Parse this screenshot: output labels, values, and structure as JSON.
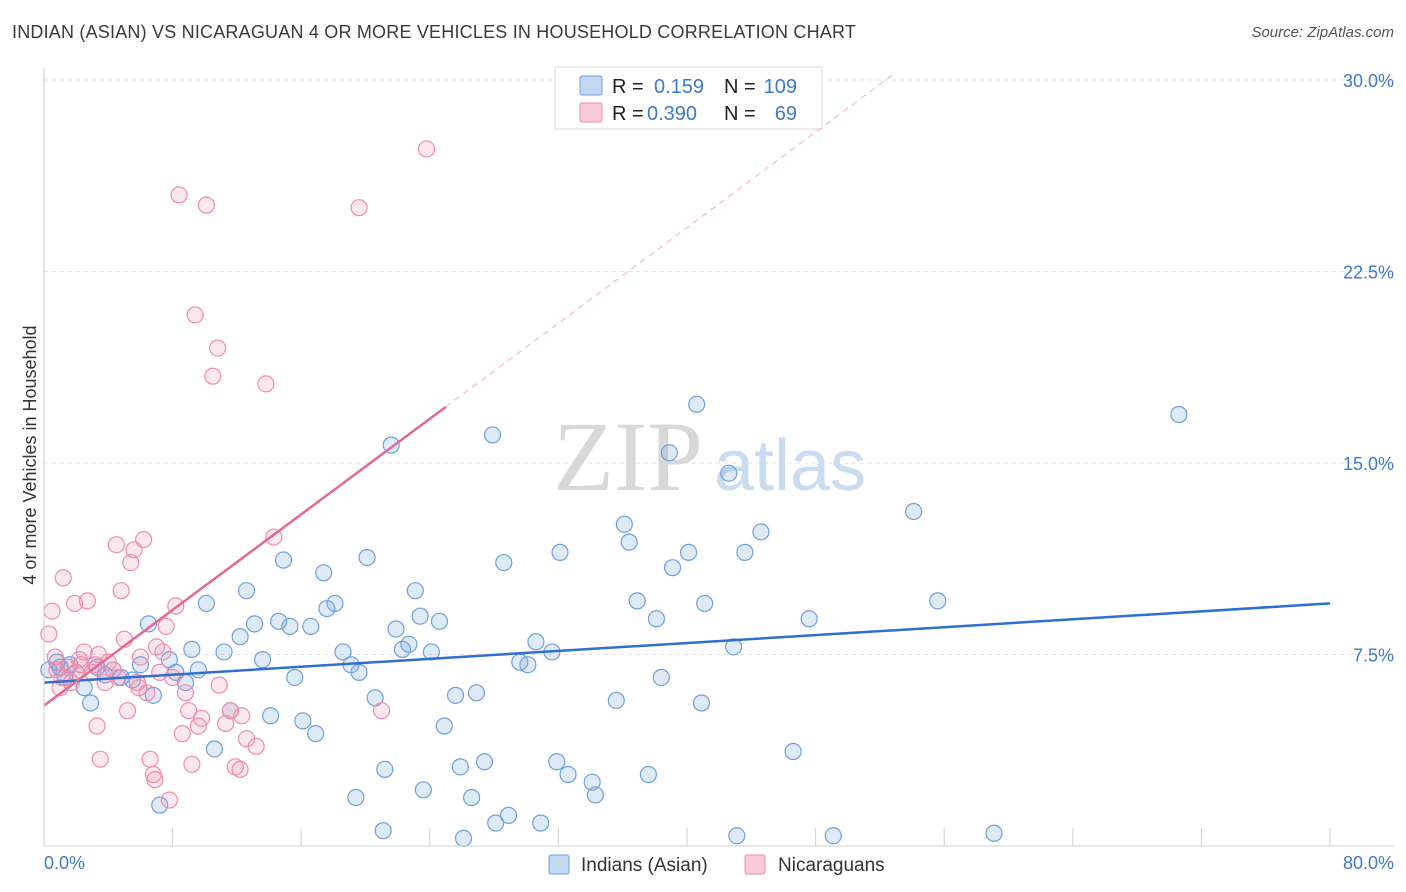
{
  "header": {
    "title": "INDIAN (ASIAN) VS NICARAGUAN 4 OR MORE VEHICLES IN HOUSEHOLD CORRELATION CHART",
    "source": "Source: ZipAtlas.com"
  },
  "watermark": {
    "zip": "ZIP",
    "atlas": "atlas"
  },
  "legend": {
    "r_label": "R =",
    "n_label": "N =",
    "rows": [
      {
        "r": "0.159",
        "n": "109",
        "color": "#6fa0dc"
      },
      {
        "r": "0.390",
        "n": "69",
        "color": "#f08cab"
      }
    ]
  },
  "bottom_legend": [
    "Indians (Asian)",
    "Nicaraguans"
  ],
  "chart_data": {
    "type": "scatter",
    "ylabel": "4 or more Vehicles in Household",
    "xlim": [
      0,
      80
    ],
    "ylim": [
      0,
      30
    ],
    "x_tick_labels": [
      "0.0%",
      "80.0%"
    ],
    "y_ticks": [
      7.5,
      15.0,
      22.5,
      30.0
    ],
    "y_tick_labels": [
      "7.5%",
      "15.0%",
      "22.5%",
      "30.0%"
    ],
    "grid": true,
    "colors": {
      "blue": "#6fa0dc",
      "blue_line": "#2f6fcf",
      "pink": "#f08cab",
      "pink_line": "#e06a92"
    },
    "series": [
      {
        "name": "Indians (Asian)",
        "trend": {
          "x0": 0,
          "y0": 6.4,
          "x1": 80,
          "y1": 9.5
        },
        "points": [
          [
            0.3,
            6.9
          ],
          [
            0.8,
            7.2
          ],
          [
            1.0,
            7.0
          ],
          [
            1.3,
            6.6
          ],
          [
            1.6,
            7.1
          ],
          [
            2.0,
            6.8
          ],
          [
            2.5,
            6.2
          ],
          [
            2.9,
            5.6
          ],
          [
            3.3,
            7.0
          ],
          [
            3.8,
            6.7
          ],
          [
            4.3,
            6.9
          ],
          [
            4.8,
            6.6
          ],
          [
            5.5,
            6.5
          ],
          [
            6.0,
            7.1
          ],
          [
            6.5,
            8.7
          ],
          [
            6.8,
            5.9
          ],
          [
            7.2,
            1.6
          ],
          [
            7.8,
            7.3
          ],
          [
            8.2,
            6.8
          ],
          [
            8.8,
            6.4
          ],
          [
            9.2,
            7.7
          ],
          [
            9.6,
            6.9
          ],
          [
            10.1,
            9.5
          ],
          [
            10.6,
            3.8
          ],
          [
            11.2,
            7.6
          ],
          [
            11.6,
            5.3
          ],
          [
            12.2,
            8.2
          ],
          [
            12.6,
            10.0
          ],
          [
            13.1,
            8.7
          ],
          [
            13.6,
            7.3
          ],
          [
            14.1,
            5.1
          ],
          [
            14.6,
            8.8
          ],
          [
            14.9,
            11.2
          ],
          [
            15.3,
            8.6
          ],
          [
            15.6,
            6.6
          ],
          [
            16.1,
            4.9
          ],
          [
            16.6,
            8.6
          ],
          [
            16.9,
            4.4
          ],
          [
            17.4,
            10.7
          ],
          [
            17.6,
            9.3
          ],
          [
            18.1,
            9.5
          ],
          [
            18.6,
            7.6
          ],
          [
            19.1,
            7.1
          ],
          [
            19.4,
            1.9
          ],
          [
            19.6,
            6.8
          ],
          [
            20.1,
            11.3
          ],
          [
            20.6,
            5.8
          ],
          [
            21.1,
            0.6
          ],
          [
            21.2,
            3.0
          ],
          [
            21.6,
            15.7
          ],
          [
            21.9,
            8.5
          ],
          [
            22.3,
            7.7
          ],
          [
            22.7,
            7.9
          ],
          [
            23.1,
            10.0
          ],
          [
            23.4,
            9.0
          ],
          [
            23.6,
            2.2
          ],
          [
            24.1,
            7.6
          ],
          [
            24.6,
            8.8
          ],
          [
            24.9,
            4.7
          ],
          [
            25.6,
            5.9
          ],
          [
            25.9,
            3.1
          ],
          [
            26.1,
            0.3
          ],
          [
            26.6,
            1.9
          ],
          [
            26.9,
            6.0
          ],
          [
            27.4,
            3.3
          ],
          [
            27.9,
            16.1
          ],
          [
            28.1,
            0.9
          ],
          [
            28.6,
            11.1
          ],
          [
            28.9,
            1.2
          ],
          [
            29.6,
            7.2
          ],
          [
            30.1,
            7.1
          ],
          [
            30.6,
            8.0
          ],
          [
            30.9,
            0.9
          ],
          [
            31.6,
            7.6
          ],
          [
            31.9,
            3.3
          ],
          [
            32.1,
            11.5
          ],
          [
            32.6,
            2.8
          ],
          [
            34.1,
            2.5
          ],
          [
            34.3,
            2.0
          ],
          [
            35.6,
            5.7
          ],
          [
            36.1,
            12.6
          ],
          [
            36.4,
            11.9
          ],
          [
            36.9,
            9.6
          ],
          [
            37.6,
            2.8
          ],
          [
            38.1,
            8.9
          ],
          [
            38.4,
            6.6
          ],
          [
            38.9,
            15.4
          ],
          [
            39.1,
            10.9
          ],
          [
            40.1,
            11.5
          ],
          [
            40.6,
            17.3
          ],
          [
            40.9,
            5.6
          ],
          [
            41.1,
            9.5
          ],
          [
            42.6,
            14.6
          ],
          [
            42.9,
            7.8
          ],
          [
            43.1,
            0.4
          ],
          [
            43.6,
            11.5
          ],
          [
            44.6,
            12.3
          ],
          [
            46.6,
            3.7
          ],
          [
            47.6,
            8.9
          ],
          [
            49.1,
            0.4
          ],
          [
            54.1,
            13.1
          ],
          [
            55.6,
            9.6
          ],
          [
            59.1,
            0.5
          ],
          [
            70.6,
            16.9
          ]
        ]
      },
      {
        "name": "Nicaraguans",
        "trend": {
          "x0": 0,
          "y0": 5.5,
          "x1": 25,
          "y1": 17.2,
          "dash_to_x": 53,
          "dash_to_y": 30.3
        },
        "points": [
          [
            0.3,
            8.3
          ],
          [
            0.5,
            9.2
          ],
          [
            0.8,
            6.9
          ],
          [
            1.0,
            6.2
          ],
          [
            1.2,
            10.5
          ],
          [
            1.5,
            7.0
          ],
          [
            1.7,
            6.4
          ],
          [
            1.9,
            9.5
          ],
          [
            2.2,
            7.3
          ],
          [
            2.5,
            7.6
          ],
          [
            2.7,
            9.6
          ],
          [
            3.0,
            6.8
          ],
          [
            3.2,
            7.1
          ],
          [
            3.3,
            4.7
          ],
          [
            3.5,
            3.4
          ],
          [
            3.8,
            6.4
          ],
          [
            4.0,
            7.2
          ],
          [
            4.3,
            6.9
          ],
          [
            4.5,
            11.8
          ],
          [
            4.8,
            10.0
          ],
          [
            5.0,
            8.1
          ],
          [
            5.2,
            5.3
          ],
          [
            5.4,
            11.1
          ],
          [
            5.6,
            11.6
          ],
          [
            5.8,
            6.4
          ],
          [
            6.0,
            7.4
          ],
          [
            6.2,
            12.0
          ],
          [
            6.4,
            6.0
          ],
          [
            6.6,
            3.4
          ],
          [
            6.8,
            2.8
          ],
          [
            7.0,
            7.8
          ],
          [
            7.2,
            6.8
          ],
          [
            7.4,
            7.6
          ],
          [
            7.6,
            8.6
          ],
          [
            7.8,
            1.8
          ],
          [
            8.0,
            6.6
          ],
          [
            8.2,
            9.4
          ],
          [
            8.4,
            25.5
          ],
          [
            8.6,
            4.4
          ],
          [
            8.8,
            6.0
          ],
          [
            9.0,
            5.3
          ],
          [
            9.2,
            3.2
          ],
          [
            9.4,
            20.8
          ],
          [
            9.8,
            5.0
          ],
          [
            10.1,
            25.1
          ],
          [
            10.5,
            18.4
          ],
          [
            10.8,
            19.5
          ],
          [
            11.3,
            4.8
          ],
          [
            11.6,
            5.3
          ],
          [
            11.9,
            3.1
          ],
          [
            12.2,
            3.0
          ],
          [
            12.6,
            4.2
          ],
          [
            13.2,
            3.9
          ],
          [
            13.8,
            18.1
          ],
          [
            14.3,
            12.1
          ],
          [
            19.6,
            25.0
          ],
          [
            23.8,
            27.3
          ],
          [
            21.0,
            5.3
          ],
          [
            2.0,
            6.8
          ],
          [
            2.3,
            7.1
          ],
          [
            3.4,
            7.5
          ],
          [
            4.6,
            6.6
          ],
          [
            6.9,
            2.6
          ],
          [
            9.6,
            4.7
          ],
          [
            10.9,
            6.3
          ],
          [
            12.3,
            5.1
          ],
          [
            1.1,
            6.6
          ],
          [
            0.7,
            7.4
          ],
          [
            5.9,
            6.2
          ]
        ]
      }
    ]
  }
}
